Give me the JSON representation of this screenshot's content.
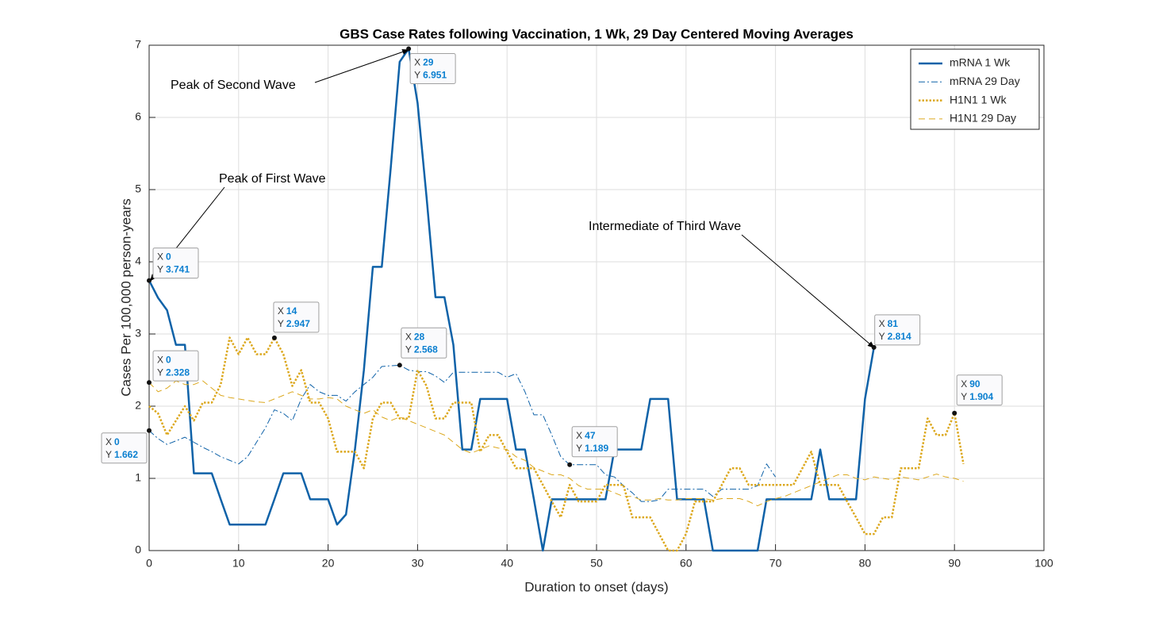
{
  "chart_data": {
    "type": "line",
    "title": "GBS Case Rates following Vaccination, 1 Wk, 29 Day Centered Moving Averages",
    "x_label": "Duration to onset (days)",
    "y_label": "Cases Per 100,000 person-years",
    "xlim": [
      0,
      100
    ],
    "xticks": [
      0,
      10,
      20,
      30,
      40,
      50,
      60,
      70,
      80,
      90,
      100
    ],
    "ylim": [
      0,
      7
    ],
    "yticks": [
      0,
      1,
      2,
      3,
      4,
      5,
      6,
      7
    ],
    "grid": true,
    "legend": "upper right",
    "series": [
      {
        "name": "mRNA 1 Wk",
        "color": "#0f62a8",
        "style": "solid",
        "width": 2.5,
        "x": [
          0,
          1,
          2,
          3,
          4,
          5,
          6,
          7,
          8,
          9,
          10,
          11,
          12,
          13,
          14,
          15,
          16,
          17,
          18,
          19,
          20,
          21,
          22,
          23,
          24,
          25,
          26,
          27,
          28,
          29,
          30,
          31,
          32,
          33,
          34,
          35,
          36,
          37,
          38,
          39,
          40,
          41,
          42,
          43,
          44,
          45,
          46,
          47,
          48,
          49,
          50,
          51,
          52,
          53,
          54,
          55,
          56,
          57,
          58,
          59,
          60,
          61,
          62,
          63,
          64,
          65,
          66,
          67,
          68,
          69,
          70,
          71,
          72,
          73,
          74,
          75,
          76,
          77,
          78,
          79,
          80,
          81
        ],
        "values": [
          3.741,
          3.5,
          3.33,
          2.85,
          2.85,
          1.07,
          1.07,
          1.07,
          0.71,
          0.36,
          0.36,
          0.36,
          0.36,
          0.36,
          0.71,
          1.07,
          1.07,
          1.07,
          0.71,
          0.71,
          0.71,
          0.36,
          0.5,
          1.4,
          2.5,
          3.93,
          3.93,
          5.3,
          6.77,
          6.951,
          6.2,
          4.9,
          3.51,
          3.51,
          2.85,
          1.4,
          1.4,
          2.1,
          2.1,
          2.1,
          2.1,
          1.4,
          1.4,
          0.71,
          0,
          0.71,
          0.71,
          0.71,
          0.71,
          0.71,
          0.71,
          0.71,
          1.4,
          1.4,
          1.4,
          1.4,
          2.1,
          2.1,
          2.1,
          0.71,
          0.71,
          0.71,
          0.71,
          0,
          0,
          0,
          0,
          0,
          0,
          0.71,
          0.71,
          0.71,
          0.71,
          0.71,
          0.71,
          1.4,
          0.71,
          0.71,
          0.71,
          0.71,
          2.1,
          2.814
        ]
      },
      {
        "name": "mRNA 29 Day",
        "color": "#0f62a8",
        "style": "dashdot",
        "width": 1,
        "x": [
          0,
          1,
          2,
          3,
          4,
          5,
          6,
          7,
          8,
          9,
          10,
          11,
          12,
          13,
          14,
          15,
          16,
          17,
          18,
          19,
          20,
          21,
          22,
          23,
          24,
          25,
          26,
          27,
          28,
          29,
          30,
          31,
          32,
          33,
          34,
          35,
          36,
          37,
          38,
          39,
          40,
          41,
          42,
          43,
          44,
          45,
          46,
          47,
          48,
          49,
          50,
          51,
          52,
          53,
          54,
          55,
          56,
          57,
          58,
          59,
          60,
          61,
          62,
          63,
          64,
          65,
          66,
          67,
          68,
          69,
          70
        ],
        "values": [
          1.662,
          1.55,
          1.47,
          1.52,
          1.57,
          1.5,
          1.43,
          1.37,
          1.3,
          1.25,
          1.2,
          1.3,
          1.5,
          1.7,
          1.95,
          1.9,
          1.8,
          2.1,
          2.3,
          2.2,
          2.15,
          2.15,
          2.07,
          2.2,
          2.3,
          2.4,
          2.55,
          2.56,
          2.568,
          2.5,
          2.48,
          2.48,
          2.42,
          2.33,
          2.47,
          2.47,
          2.47,
          2.47,
          2.47,
          2.47,
          2.4,
          2.45,
          2.2,
          1.88,
          1.88,
          1.6,
          1.3,
          1.189,
          1.19,
          1.19,
          1.19,
          1.05,
          1.02,
          0.9,
          0.8,
          0.68,
          0.68,
          0.7,
          0.85,
          0.85,
          0.85,
          0.85,
          0.85,
          0.75,
          0.85,
          0.85,
          0.85,
          0.85,
          0.9,
          1.2,
          1.02
        ]
      },
      {
        "name": "H1N1 1 Wk",
        "color": "#dca81e",
        "style": "dotted",
        "width": 2.5,
        "x": [
          0,
          1,
          2,
          3,
          4,
          5,
          6,
          7,
          8,
          9,
          10,
          11,
          12,
          13,
          14,
          15,
          16,
          17,
          18,
          19,
          20,
          21,
          22,
          23,
          24,
          25,
          26,
          27,
          28,
          29,
          30,
          31,
          32,
          33,
          34,
          35,
          36,
          37,
          38,
          39,
          40,
          41,
          42,
          43,
          44,
          45,
          46,
          47,
          48,
          49,
          50,
          51,
          52,
          53,
          54,
          55,
          56,
          57,
          58,
          59,
          60,
          61,
          62,
          63,
          64,
          65,
          66,
          67,
          68,
          69,
          70,
          71,
          72,
          73,
          74,
          75,
          76,
          77,
          78,
          79,
          80,
          81,
          82,
          83,
          84,
          85,
          86,
          87,
          88,
          89,
          90,
          91
        ],
        "values": [
          2.0,
          1.9,
          1.6,
          1.8,
          2.0,
          1.8,
          2.05,
          2.05,
          2.3,
          2.95,
          2.72,
          2.95,
          2.72,
          2.72,
          2.947,
          2.72,
          2.28,
          2.5,
          2.05,
          2.05,
          1.83,
          1.37,
          1.37,
          1.37,
          1.14,
          1.83,
          2.05,
          2.05,
          1.83,
          1.83,
          2.5,
          2.28,
          1.83,
          1.83,
          2.05,
          2.05,
          2.05,
          1.37,
          1.6,
          1.6,
          1.37,
          1.14,
          1.14,
          1.14,
          0.91,
          0.68,
          0.46,
          0.91,
          0.68,
          0.68,
          0.68,
          0.91,
          0.91,
          0.91,
          0.46,
          0.46,
          0.46,
          0.23,
          0,
          0,
          0.23,
          0.68,
          0.68,
          0.68,
          0.91,
          1.14,
          1.14,
          0.91,
          0.91,
          0.91,
          0.91,
          0.91,
          0.91,
          1.14,
          1.37,
          0.91,
          0.91,
          0.91,
          0.68,
          0.46,
          0.23,
          0.23,
          0.46,
          0.46,
          1.14,
          1.14,
          1.14,
          1.83,
          1.6,
          1.6,
          1.904,
          1.2
        ]
      },
      {
        "name": "H1N1 29 Day",
        "color": "#dca81e",
        "style": "dashed",
        "width": 1,
        "x": [
          0,
          1,
          2,
          3,
          4,
          5,
          6,
          7,
          8,
          9,
          10,
          11,
          12,
          13,
          14,
          15,
          16,
          17,
          18,
          19,
          20,
          21,
          22,
          23,
          24,
          25,
          26,
          27,
          28,
          29,
          30,
          31,
          32,
          33,
          34,
          35,
          36,
          37,
          38,
          39,
          40,
          41,
          42,
          43,
          44,
          45,
          46,
          47,
          48,
          49,
          50,
          51,
          52,
          53,
          54,
          55,
          56,
          57,
          58,
          59,
          60,
          61,
          62,
          63,
          64,
          65,
          66,
          67,
          68,
          69,
          70,
          71,
          72,
          73,
          74,
          75,
          76,
          77,
          78,
          79,
          80,
          81,
          82,
          83,
          84,
          85,
          86,
          87,
          88,
          89,
          90,
          91
        ],
        "values": [
          2.328,
          2.2,
          2.25,
          2.35,
          2.3,
          2.3,
          2.35,
          2.25,
          2.15,
          2.12,
          2.1,
          2.08,
          2.06,
          2.05,
          2.1,
          2.15,
          2.2,
          2.15,
          2.1,
          2.1,
          2.12,
          2.1,
          2.0,
          1.95,
          1.9,
          1.95,
          1.85,
          1.8,
          1.85,
          1.8,
          1.75,
          1.7,
          1.65,
          1.6,
          1.5,
          1.4,
          1.35,
          1.4,
          1.45,
          1.42,
          1.4,
          1.3,
          1.25,
          1.15,
          1.1,
          1.05,
          1.05,
          1.0,
          0.9,
          0.85,
          0.85,
          0.85,
          0.8,
          0.75,
          0.75,
          0.7,
          0.7,
          0.72,
          0.7,
          0.7,
          0.72,
          0.72,
          0.72,
          0.7,
          0.72,
          0.72,
          0.72,
          0.68,
          0.62,
          0.68,
          0.72,
          0.75,
          0.8,
          0.85,
          0.9,
          0.95,
          1.0,
          1.05,
          1.05,
          1.0,
          0.98,
          1.02,
          1.0,
          0.98,
          1.02,
          1.0,
          0.98,
          1.02,
          1.06,
          1.02,
          1.0,
          0.96
        ]
      }
    ],
    "datatip_x_label": "X",
    "datatip_y_label": "Y",
    "datatips": [
      {
        "x": 0,
        "y": 3.741
      },
      {
        "x": 29,
        "y": 6.951
      },
      {
        "x": 0,
        "y": 2.328
      },
      {
        "x": 14,
        "y": 2.947
      },
      {
        "x": 28,
        "y": 2.568
      },
      {
        "x": 0,
        "y": 1.662
      },
      {
        "x": 47,
        "y": 1.189
      },
      {
        "x": 81,
        "y": 2.814
      },
      {
        "x": 90,
        "y": 1.904
      }
    ],
    "annotations": [
      "Peak of Second Wave",
      "Peak of First Wave",
      "Intermediate of Third Wave"
    ]
  }
}
